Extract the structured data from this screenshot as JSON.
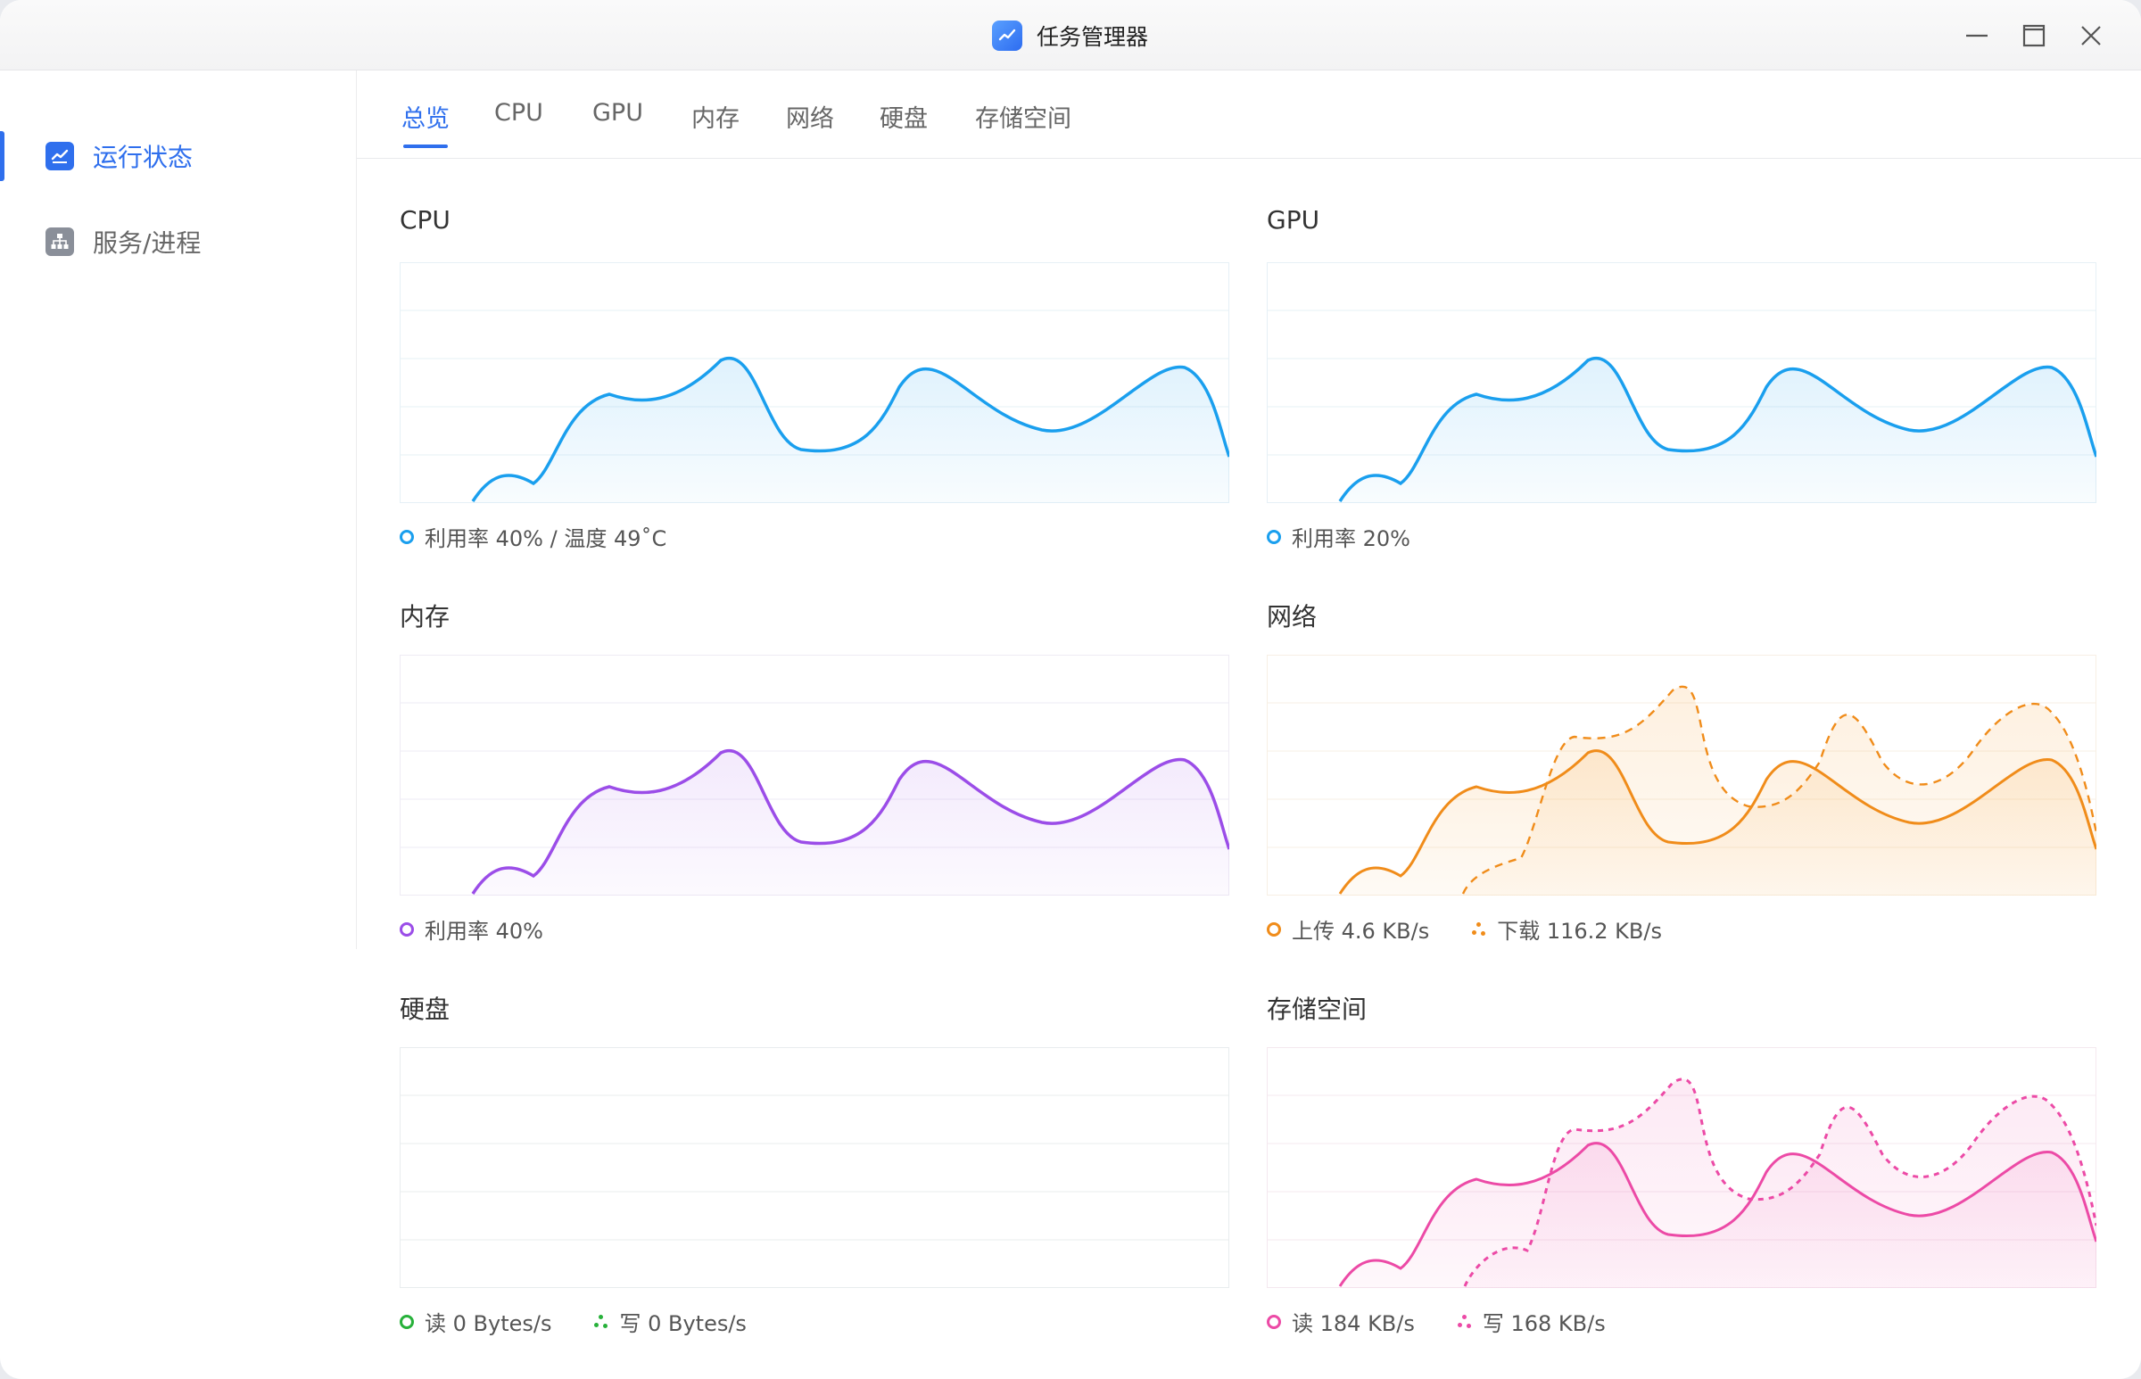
{
  "window": {
    "title": "任务管理器"
  },
  "sidebar": {
    "items": [
      {
        "label": "运行状态",
        "active": true,
        "icon": "chart-icon"
      },
      {
        "label": "服务/进程",
        "active": false,
        "icon": "sitemap-icon"
      }
    ]
  },
  "tabs": [
    "总览",
    "CPU",
    "GPU",
    "内存",
    "网络",
    "硬盘",
    "存储空间"
  ],
  "panels": {
    "cpu": {
      "title": "CPU",
      "legend": "利用率 40% / 温度 49˚C",
      "color": "#1a9fee"
    },
    "gpu": {
      "title": "GPU",
      "legend": "利用率 20%",
      "color": "#1a9fee"
    },
    "memory": {
      "title": "内存",
      "legend": "利用率 40%",
      "color": "#9b4de8"
    },
    "network": {
      "title": "网络",
      "upload": "上传 4.6 KB/s",
      "download": "下载 116.2 KB/s",
      "color": "#f08c1a"
    },
    "disk": {
      "title": "硬盘",
      "read": "读 0 Bytes/s",
      "write": "写 0 Bytes/s",
      "color": "#27b13a"
    },
    "storage": {
      "title": "存储空间",
      "read": "读 184 KB/s",
      "write": "写 168 KB/s",
      "color": "#ec4aa6"
    }
  },
  "colors": {
    "accent": "#2f6fed",
    "cpu": "#1a9fee",
    "memory": "#9b4de8",
    "network": "#f08c1a",
    "disk": "#27b13a",
    "storage": "#ec4aa6"
  }
}
